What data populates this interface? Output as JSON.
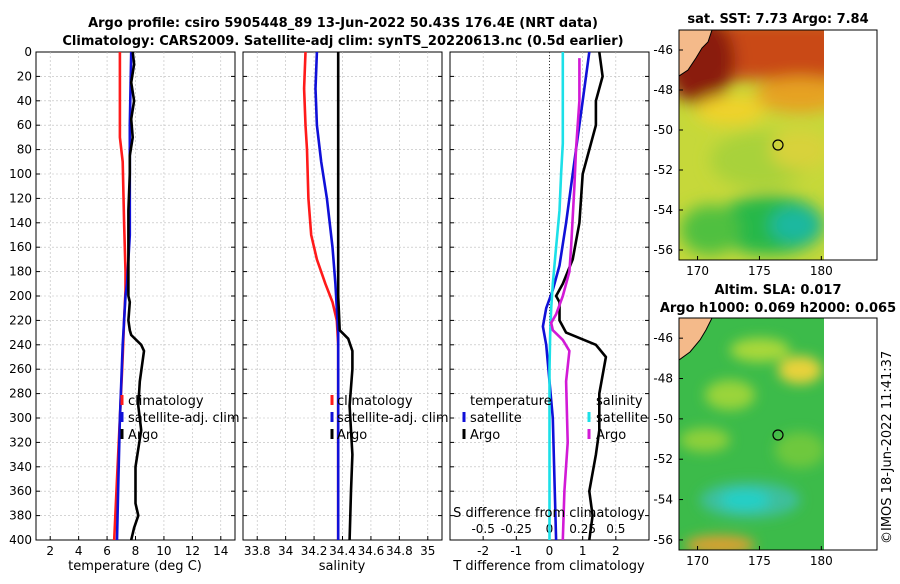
{
  "title": {
    "line1": "Argo profile: csiro 5905448_89 13-Jun-2022 50.43S 176.4E (NRT data)",
    "line2": "Climatology: CARS2009. Satellite-adj clim: synTS_20220613.nc (0.5d earlier)"
  },
  "colors": {
    "red": "#ff1a1a",
    "blue": "#1010d8",
    "black": "#000000",
    "cyan": "#1ce0e8",
    "magenta": "#d21ad6"
  },
  "chart_data": [
    {
      "type": "line",
      "id": "temperature",
      "xlabel": "temperature (deg C)",
      "ylabel": "",
      "xlim": [
        1,
        15
      ],
      "ylim": [
        400,
        0
      ],
      "xticks": [
        "2",
        "4",
        "6",
        "8",
        "10",
        "12",
        "14"
      ],
      "yticks": [
        "0",
        "20",
        "40",
        "60",
        "80",
        "100",
        "120",
        "140",
        "160",
        "180",
        "200",
        "220",
        "240",
        "260",
        "280",
        "300",
        "320",
        "340",
        "360",
        "380",
        "400"
      ],
      "series": [
        {
          "name": "climatology",
          "color": "red",
          "points": [
            [
              6.9,
              0
            ],
            [
              6.9,
              70
            ],
            [
              7.1,
              90
            ],
            [
              7.2,
              140
            ],
            [
              7.3,
              180
            ],
            [
              7.3,
              195
            ],
            [
              7.2,
              220
            ],
            [
              7.1,
              250
            ],
            [
              6.9,
              300
            ],
            [
              6.7,
              350
            ],
            [
              6.5,
              400
            ]
          ]
        },
        {
          "name": "satellite-adj. clim",
          "color": "blue",
          "points": [
            [
              7.7,
              0
            ],
            [
              7.6,
              60
            ],
            [
              7.6,
              150
            ],
            [
              7.4,
              190
            ],
            [
              7.3,
              200
            ],
            [
              7.1,
              240
            ],
            [
              6.9,
              300
            ],
            [
              6.8,
              350
            ],
            [
              6.7,
              400
            ]
          ]
        },
        {
          "name": "Argo",
          "color": "black",
          "points": [
            [
              7.8,
              0
            ],
            [
              7.9,
              10
            ],
            [
              7.7,
              25
            ],
            [
              7.9,
              40
            ],
            [
              7.7,
              55
            ],
            [
              7.8,
              70
            ],
            [
              7.6,
              85
            ],
            [
              7.6,
              100
            ],
            [
              7.5,
              130
            ],
            [
              7.5,
              190
            ],
            [
              7.5,
              200
            ],
            [
              7.6,
              205
            ],
            [
              7.5,
              220
            ],
            [
              7.6,
              228
            ],
            [
              7.7,
              232
            ],
            [
              8.4,
              240
            ],
            [
              8.6,
              245
            ],
            [
              8.3,
              270
            ],
            [
              8.2,
              290
            ],
            [
              8.4,
              310
            ],
            [
              8.0,
              340
            ],
            [
              8.0,
              370
            ],
            [
              8.2,
              380
            ],
            [
              7.9,
              390
            ],
            [
              7.7,
              400
            ]
          ]
        }
      ],
      "legend": [
        "climatology",
        "satellite-adj. clim",
        "Argo"
      ]
    },
    {
      "type": "line",
      "id": "salinity",
      "xlabel": "salinity",
      "xlim": [
        33.7,
        35.1
      ],
      "ylim": [
        400,
        0
      ],
      "xticks": [
        "33.8",
        "34",
        "34.2",
        "34.4",
        "34.6",
        "34.8",
        "35"
      ],
      "series": [
        {
          "name": "climatology",
          "color": "red",
          "points": [
            [
              34.14,
              0
            ],
            [
              34.13,
              30
            ],
            [
              34.14,
              60
            ],
            [
              34.15,
              80
            ],
            [
              34.16,
              120
            ],
            [
              34.18,
              150
            ],
            [
              34.22,
              170
            ],
            [
              34.28,
              190
            ],
            [
              34.33,
              205
            ],
            [
              34.36,
              220
            ],
            [
              34.37,
              240
            ],
            [
              34.37,
              400
            ]
          ]
        },
        {
          "name": "satellite-adj. clim",
          "color": "blue",
          "points": [
            [
              34.22,
              0
            ],
            [
              34.21,
              30
            ],
            [
              34.22,
              60
            ],
            [
              34.25,
              90
            ],
            [
              34.29,
              120
            ],
            [
              34.33,
              160
            ],
            [
              34.35,
              190
            ],
            [
              34.36,
              210
            ],
            [
              34.37,
              230
            ],
            [
              34.37,
              400
            ]
          ]
        },
        {
          "name": "Argo",
          "color": "black",
          "points": [
            [
              34.37,
              0
            ],
            [
              34.37,
              200
            ],
            [
              34.38,
              228
            ],
            [
              34.44,
              235
            ],
            [
              34.47,
              245
            ],
            [
              34.47,
              260
            ],
            [
              34.45,
              290
            ],
            [
              34.47,
              330
            ],
            [
              34.46,
              360
            ],
            [
              34.45,
              400
            ]
          ]
        }
      ],
      "legend": [
        "climatology",
        "satellite-adj. clim",
        "Argo"
      ]
    },
    {
      "type": "line",
      "id": "difference",
      "xlabel": "T difference from climatology",
      "xlabel2": "S difference from climatology",
      "xlim": [
        -3,
        3
      ],
      "ylim": [
        400,
        0
      ],
      "xticks": [
        "-2",
        "-1",
        "0",
        "1",
        "2"
      ],
      "xticks2": [
        "-0.5",
        "-0.25",
        "0",
        "0.25",
        "0.5"
      ],
      "series": [
        {
          "name": "temperature satellite",
          "color": "blue",
          "points": [
            [
              1.2,
              0
            ],
            [
              1.1,
              20
            ],
            [
              1.0,
              40
            ],
            [
              0.8,
              80
            ],
            [
              0.5,
              140
            ],
            [
              0.3,
              175
            ],
            [
              0.1,
              195
            ],
            [
              -0.1,
              210
            ],
            [
              -0.2,
              225
            ],
            [
              -0.1,
              240
            ],
            [
              0.1,
              300
            ],
            [
              0.2,
              400
            ]
          ]
        },
        {
          "name": "temperature Argo",
          "color": "black",
          "points": [
            [
              1.5,
              0
            ],
            [
              1.6,
              20
            ],
            [
              1.4,
              40
            ],
            [
              1.4,
              60
            ],
            [
              1.0,
              100
            ],
            [
              0.9,
              140
            ],
            [
              0.7,
              170
            ],
            [
              0.4,
              190
            ],
            [
              0.2,
              200
            ],
            [
              0.3,
              205
            ],
            [
              0.3,
              220
            ],
            [
              0.5,
              230
            ],
            [
              1.4,
              240
            ],
            [
              1.7,
              250
            ],
            [
              1.5,
              280
            ],
            [
              1.5,
              310
            ],
            [
              1.4,
              330
            ],
            [
              1.2,
              360
            ],
            [
              1.3,
              380
            ],
            [
              1.2,
              400
            ]
          ]
        },
        {
          "name": "salinity satellite",
          "color": "cyan",
          "points": [
            [
              0.4,
              0
            ],
            [
              0.4,
              40
            ],
            [
              0.4,
              75
            ],
            [
              0.35,
              100
            ],
            [
              0.3,
              130
            ],
            [
              0.2,
              160
            ],
            [
              0.1,
              190
            ],
            [
              0.05,
              210
            ],
            [
              0.02,
              230
            ],
            [
              0.0,
              260
            ],
            [
              0.0,
              400
            ]
          ]
        },
        {
          "name": "salinity Argo",
          "color": "magenta",
          "points": [
            [
              0.9,
              5
            ],
            [
              0.9,
              40
            ],
            [
              0.8,
              80
            ],
            [
              0.75,
              110
            ],
            [
              0.65,
              160
            ],
            [
              0.6,
              180
            ],
            [
              0.4,
              200
            ],
            [
              0.2,
              215
            ],
            [
              0.05,
              222
            ],
            [
              0.1,
              228
            ],
            [
              0.4,
              236
            ],
            [
              0.6,
              245
            ],
            [
              0.5,
              270
            ],
            [
              0.55,
              320
            ],
            [
              0.45,
              360
            ],
            [
              0.4,
              400
            ]
          ]
        }
      ],
      "legend_left_title": "temperature",
      "legend_left": [
        "satellite",
        "Argo"
      ],
      "legend_right_title": "salinity",
      "legend_right": [
        "satellite",
        "Argo"
      ]
    },
    {
      "type": "heatmap",
      "id": "sst-map",
      "title": "sat. SST: 7.73 Argo: 7.84",
      "xlim": [
        168.5,
        184.5
      ],
      "ylim": [
        -56.5,
        -45
      ],
      "xticks": [
        "170",
        "175",
        "180"
      ],
      "yticks": [
        "-46",
        "-48",
        "-50",
        "-52",
        "-54",
        "-56"
      ],
      "marker": [
        176.4,
        -50.43
      ]
    },
    {
      "type": "heatmap",
      "id": "sla-map",
      "title": "Altim. SLA: 0.017",
      "subtitle": "Argo h1000: 0.069 h2000: 0.065",
      "xlim": [
        168.5,
        184.5
      ],
      "ylim": [
        -56.5,
        -45
      ],
      "xticks": [
        "170",
        "175",
        "180"
      ],
      "yticks": [
        "-46",
        "-48",
        "-50",
        "-52",
        "-54",
        "-56"
      ],
      "marker": [
        176.4,
        -50.43
      ]
    }
  ],
  "watermark": "©IMOS 18-Jun-2022 11:41:37"
}
